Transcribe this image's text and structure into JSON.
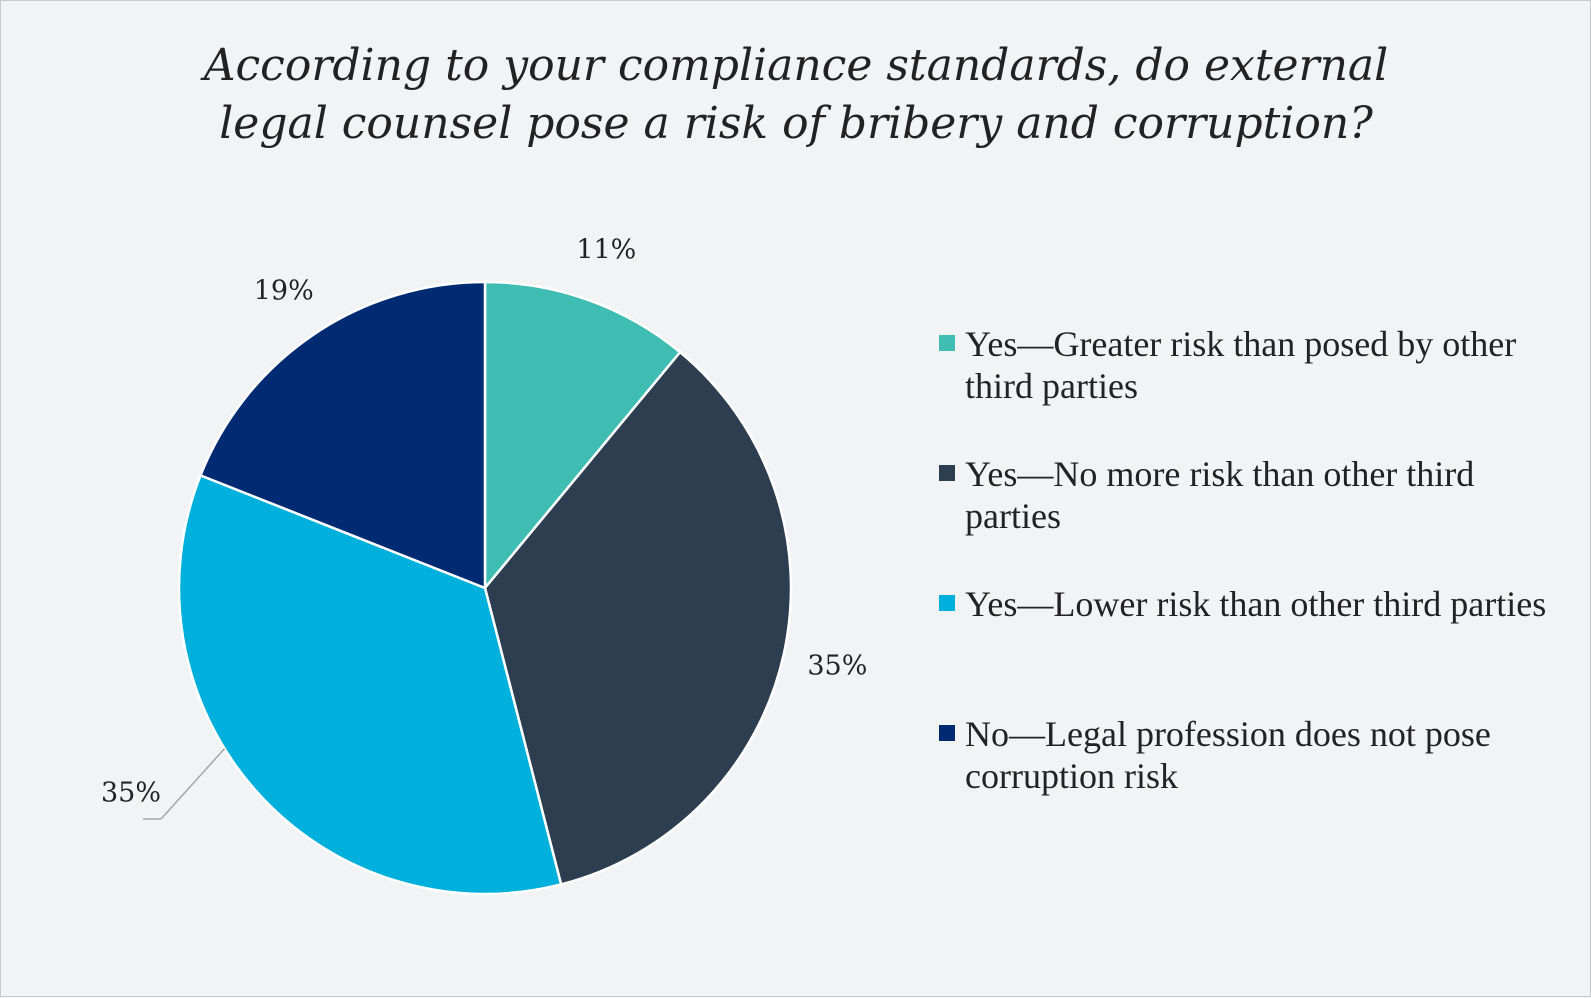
{
  "chart_data": {
    "type": "pie",
    "title_lines": [
      "According to your compliance standards, do external",
      "legal counsel pose a risk of bribery and corruption?"
    ],
    "slices": [
      {
        "label": "Yes—Greater risk than posed by other third parties",
        "value": 11,
        "value_label": "11%",
        "color": "#40bdb3"
      },
      {
        "label": "Yes—No more risk than other third parties",
        "value": 35,
        "value_label": "35%",
        "color": "#2d3e50"
      },
      {
        "label": "Yes—Lower risk than other third parties",
        "value": 35,
        "value_label": "35%",
        "color": "#00b0dc"
      },
      {
        "label": "No—Legal profession does not pose corruption risk",
        "value": 19,
        "value_label": "19%",
        "color": "#002b73"
      }
    ],
    "legend_placement": "right"
  }
}
